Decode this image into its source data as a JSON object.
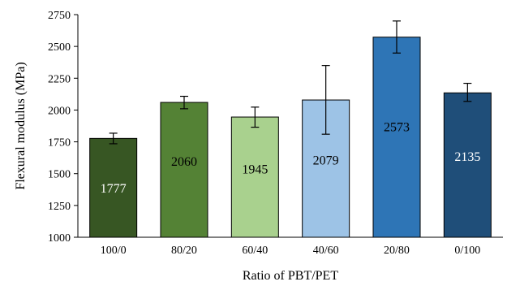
{
  "chart_data": {
    "type": "bar",
    "xlabel": "Ratio of PBT/PET",
    "ylabel": "Flexural modulus (MPa)",
    "ylim": [
      1000,
      2750
    ],
    "yticks": [
      1000,
      1250,
      1500,
      1750,
      2000,
      2250,
      2500,
      2750
    ],
    "categories": [
      "100/0",
      "80/20",
      "60/40",
      "40/60",
      "20/80",
      "0/100"
    ],
    "values": [
      1777,
      2060,
      1945,
      2079,
      2573,
      2135
    ],
    "value_labels": [
      "1777",
      "2060",
      "1945",
      "2079",
      "2573",
      "2135"
    ],
    "error_low": [
      1735,
      2010,
      1865,
      1810,
      2448,
      2068
    ],
    "error_high": [
      1818,
      2108,
      2023,
      2350,
      2700,
      2210
    ],
    "bar_colors": [
      "#375623",
      "#548235",
      "#a9d18e",
      "#9dc3e6",
      "#2e75b6",
      "#1f4e79"
    ],
    "label_colors": [
      "#ffffff",
      "#000000",
      "#000000",
      "#000000",
      "#000000",
      "#ffffff"
    ],
    "grid": false,
    "legend": "none"
  }
}
